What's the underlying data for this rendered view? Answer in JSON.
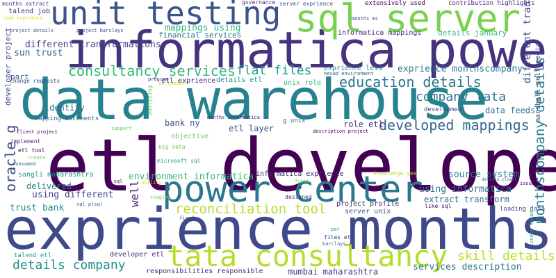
{
  "words": [
    {
      "text": "etl developer",
      "color": "#440154"
    },
    {
      "text": "exprience months",
      "color": "#3e4a89"
    },
    {
      "text": "data warehouse",
      "color": "#26828e"
    },
    {
      "text": "informatica power",
      "color": "#46327e"
    },
    {
      "text": "power center",
      "color": "#2a788e"
    },
    {
      "text": "sql server",
      "color": "#7ad151"
    },
    {
      "text": "unit testing",
      "color": "#3b528b"
    },
    {
      "text": "tata consultancy",
      "color": "#b5de2b"
    },
    {
      "text": "consultancy services",
      "color": "#35b779"
    },
    {
      "text": "reconciliation tool",
      "color": "#b5de2b"
    },
    {
      "text": "education details",
      "color": "#2a788e"
    },
    {
      "text": "developed mappings",
      "color": "#31688e"
    },
    {
      "text": "flat files",
      "color": "#1f9e89"
    },
    {
      "text": "details company",
      "color": "#21918c"
    },
    {
      "text": "skill details",
      "color": "#bddf26"
    },
    {
      "text": "company tata",
      "color": "#2c728e"
    },
    {
      "text": "monthscompany details",
      "color": "#26828e"
    },
    {
      "text": "oracle g",
      "color": "#3e4a89"
    },
    {
      "text": "well",
      "color": "#482475"
    },
    {
      "text": "different transformations",
      "color": "#3e4a89"
    },
    {
      "text": "mappings using",
      "color": "#35b779"
    },
    {
      "text": "sun trust",
      "color": "#31688e"
    },
    {
      "text": "exprience monthscompany",
      "color": "#2a788e"
    },
    {
      "text": "using informatica",
      "color": "#2c728e"
    },
    {
      "text": "environment informatica",
      "color": "#35b779"
    },
    {
      "text": "source system",
      "color": "#26828e"
    },
    {
      "text": "services description",
      "color": "#2a788e"
    },
    {
      "text": "trust bank",
      "color": "#21918c"
    },
    {
      "text": "using different",
      "color": "#414487"
    },
    {
      "text": "delivered",
      "color": "#25848e"
    },
    {
      "text": "identify",
      "color": "#31688e"
    },
    {
      "text": "data feeds",
      "color": "#2c728e"
    },
    {
      "text": "extract transform",
      "color": "#31688e"
    },
    {
      "text": "etl layer",
      "color": "#3e4a89"
    },
    {
      "text": "role etl",
      "color": "#472d7b"
    },
    {
      "text": "bank ny",
      "color": "#3b528b"
    },
    {
      "text": "mumbai maharashtra",
      "color": "#443983"
    },
    {
      "text": "project profile",
      "color": "#482878"
    },
    {
      "text": "server unix",
      "color": "#3b528b"
    },
    {
      "text": "informatica exprience",
      "color": "#482475"
    },
    {
      "text": "details january",
      "color": "#35b779"
    },
    {
      "text": "informatica mappings",
      "color": "#482475"
    },
    {
      "text": "financial services",
      "color": "#2c728e"
    },
    {
      "text": "talend job",
      "color": "#482878"
    },
    {
      "text": "months extract",
      "color": "#3e4a89"
    },
    {
      "text": "governance",
      "color": "#46327e"
    },
    {
      "text": "server exprience",
      "color": "#3b528b"
    },
    {
      "text": "extensively used",
      "color": "#440154"
    },
    {
      "text": "contribution highlights",
      "color": "#482878"
    },
    {
      "text": "load exprience",
      "color": "#d2e21b"
    },
    {
      "text": "project details",
      "color": "#3b528b"
    },
    {
      "text": "project barclays",
      "color": "#3e4a89"
    },
    {
      "text": "months ms",
      "color": "#3e4a89"
    },
    {
      "text": "center oracle",
      "color": "#1fa187"
    },
    {
      "text": "marshall multimedia",
      "color": "#3e4a89"
    },
    {
      "text": "developer project",
      "color": "#3e4a89"
    },
    {
      "text": "part",
      "color": "#3b528b"
    },
    {
      "text": "change requests",
      "color": "#3b528b"
    },
    {
      "text": "program",
      "color": "#472d7b"
    },
    {
      "text": "sb london",
      "color": "#d2e21b"
    },
    {
      "text": "etl exprience",
      "color": "#482878"
    },
    {
      "text": "details etl",
      "color": "#21918c"
    },
    {
      "text": "unix role",
      "color": "#35b779"
    },
    {
      "text": "hexad environment",
      "color": "#3b528b"
    },
    {
      "text": "exprience less",
      "color": "#25848e"
    },
    {
      "text": "analyzing",
      "color": "#5ec962"
    },
    {
      "text": "mapping documents",
      "color": "#31688e"
    },
    {
      "text": "development",
      "color": "#3e4a89"
    },
    {
      "text": "months informatica",
      "color": "#472d7b"
    },
    {
      "text": "g unix",
      "color": "#31688e"
    },
    {
      "text": "client project",
      "color": "#440154"
    },
    {
      "text": "description project",
      "color": "#440154"
    },
    {
      "text": "support",
      "color": "#5ec962"
    },
    {
      "text": "implement",
      "color": "#482878"
    },
    {
      "text": "objective",
      "color": "#6ece58"
    },
    {
      "text": "etl tool",
      "color": "#440154"
    },
    {
      "text": "big data",
      "color": "#6ece58"
    },
    {
      "text": "consumed",
      "color": "#31688e"
    },
    {
      "text": "create",
      "color": "#7ad151"
    },
    {
      "text": "microsoft sql",
      "color": "#1f9e89"
    },
    {
      "text": "sangli maharashtra",
      "color": "#1f9e89"
    },
    {
      "text": "ms sql",
      "color": "#440154"
    },
    {
      "text": "ability",
      "color": "#d2e21b"
    },
    {
      "text": "knowledge yes",
      "color": "#b5de2b"
    },
    {
      "text": "issues",
      "color": "#440154"
    },
    {
      "text": "front",
      "color": "#6ece58"
    },
    {
      "text": "details client",
      "color": "#31688e"
    },
    {
      "text": "staging",
      "color": "#7ad151"
    },
    {
      "text": "sql plsql",
      "color": "#31688e"
    },
    {
      "text": "designed",
      "color": "#46327e"
    },
    {
      "text": "like sql",
      "color": "#440154"
    },
    {
      "text": "loading data",
      "color": "#3e4a89"
    },
    {
      "text": "fixed",
      "color": "#3e4a89"
    },
    {
      "text": "per",
      "color": "#1f9e89"
    },
    {
      "text": "london hexad",
      "color": "#1f9e89"
    },
    {
      "text": "files etc",
      "color": "#46327e"
    },
    {
      "text": "barclays uk",
      "color": "#31688e"
    },
    {
      "text": "talend etl",
      "color": "#1f9e89"
    },
    {
      "text": "developer etl",
      "color": "#482878"
    },
    {
      "text": "responsibilities responsible",
      "color": "#482878"
    }
  ]
}
